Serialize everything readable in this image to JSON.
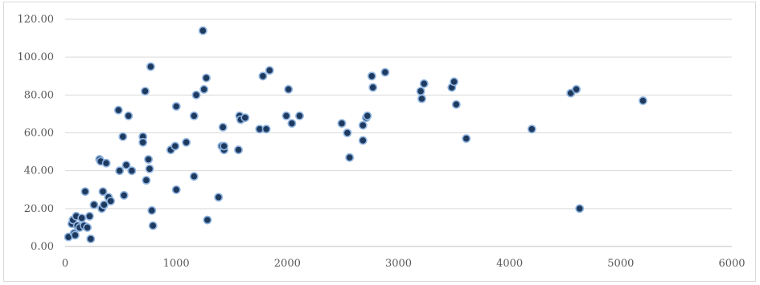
{
  "chart_data": {
    "type": "scatter",
    "title": "",
    "xlabel": "",
    "ylabel": "",
    "xlim": [
      0,
      6000
    ],
    "ylim": [
      0,
      120
    ],
    "x_ticks": [
      "0",
      "1000",
      "2000",
      "3000",
      "4000",
      "5000",
      "6000"
    ],
    "y_ticks": [
      "0.00",
      "20.00",
      "40.00",
      "60.00",
      "80.00",
      "100.00",
      "120.00"
    ],
    "grid": "horizontal",
    "legend": "none",
    "marker_fill": "#1f3a5f",
    "marker_edge": "#8fb4e0",
    "points": [
      [
        30,
        5
      ],
      [
        60,
        12
      ],
      [
        70,
        14
      ],
      [
        80,
        7
      ],
      [
        90,
        6
      ],
      [
        100,
        16
      ],
      [
        110,
        11
      ],
      [
        130,
        10
      ],
      [
        150,
        15
      ],
      [
        170,
        11
      ],
      [
        180,
        29
      ],
      [
        200,
        10
      ],
      [
        220,
        16
      ],
      [
        230,
        4
      ],
      [
        260,
        22
      ],
      [
        310,
        46
      ],
      [
        320,
        45
      ],
      [
        330,
        20
      ],
      [
        340,
        29
      ],
      [
        350,
        22
      ],
      [
        370,
        44
      ],
      [
        390,
        26
      ],
      [
        410,
        24
      ],
      [
        480,
        72
      ],
      [
        490,
        40
      ],
      [
        520,
        58
      ],
      [
        530,
        27
      ],
      [
        550,
        43
      ],
      [
        570,
        69
      ],
      [
        600,
        40
      ],
      [
        700,
        58
      ],
      [
        700,
        55
      ],
      [
        720,
        82
      ],
      [
        730,
        35
      ],
      [
        750,
        46
      ],
      [
        760,
        41
      ],
      [
        770,
        95
      ],
      [
        780,
        19
      ],
      [
        790,
        11
      ],
      [
        950,
        51
      ],
      [
        990,
        53
      ],
      [
        1000,
        74
      ],
      [
        1000,
        30
      ],
      [
        1090,
        55
      ],
      [
        1160,
        37
      ],
      [
        1160,
        69
      ],
      [
        1180,
        80
      ],
      [
        1240,
        114
      ],
      [
        1250,
        83
      ],
      [
        1270,
        89
      ],
      [
        1280,
        14
      ],
      [
        1380,
        26
      ],
      [
        1410,
        53
      ],
      [
        1420,
        63
      ],
      [
        1430,
        51
      ],
      [
        1430,
        53
      ],
      [
        1560,
        51
      ],
      [
        1570,
        69
      ],
      [
        1580,
        67
      ],
      [
        1620,
        68
      ],
      [
        1750,
        62
      ],
      [
        1780,
        90
      ],
      [
        1810,
        62
      ],
      [
        1840,
        93
      ],
      [
        1990,
        69
      ],
      [
        2010,
        83
      ],
      [
        2040,
        65
      ],
      [
        2110,
        69
      ],
      [
        2490,
        65
      ],
      [
        2540,
        60
      ],
      [
        2560,
        47
      ],
      [
        2680,
        56
      ],
      [
        2680,
        64
      ],
      [
        2710,
        68
      ],
      [
        2720,
        69
      ],
      [
        2760,
        90
      ],
      [
        2770,
        84
      ],
      [
        2880,
        92
      ],
      [
        3200,
        82
      ],
      [
        3210,
        78
      ],
      [
        3230,
        86
      ],
      [
        3480,
        84
      ],
      [
        3500,
        87
      ],
      [
        3520,
        75
      ],
      [
        3610,
        57
      ],
      [
        4200,
        62
      ],
      [
        4550,
        81
      ],
      [
        4600,
        83
      ],
      [
        4630,
        20
      ],
      [
        5200,
        77
      ]
    ]
  }
}
